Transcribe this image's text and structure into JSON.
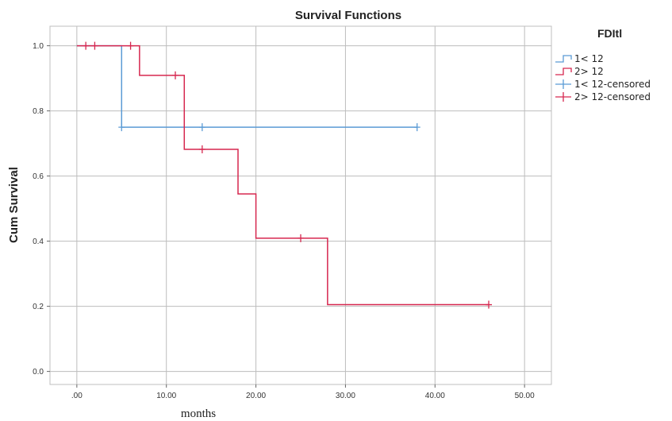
{
  "chart_data": {
    "type": "line",
    "subtype": "kaplan-meier-step",
    "title": "Survival Functions",
    "xlabel": "months",
    "ylabel": "Cum Survival",
    "xlim": [
      -3,
      53
    ],
    "ylim": [
      -0.04,
      1.06
    ],
    "x_ticks": [
      0,
      10,
      20,
      30,
      40,
      50
    ],
    "x_tick_labels": [
      ".00",
      "10.00",
      "20.00",
      "30.00",
      "40.00",
      "50.00"
    ],
    "y_ticks": [
      0,
      0.2,
      0.4,
      0.6,
      0.8,
      1.0
    ],
    "y_tick_labels": [
      "0.0",
      "0.2",
      "0.4",
      "0.6",
      "0.8",
      "1.0"
    ],
    "grid": true,
    "legend_title": "FDItl",
    "legend_position": "top-right outside",
    "series": [
      {
        "name": "1< 12",
        "color": "#5b9bd5",
        "steps": [
          [
            0,
            1.0
          ],
          [
            5,
            0.75
          ],
          [
            38,
            0.75
          ]
        ],
        "censored_name": "1< 12-censored",
        "censored": [
          [
            5,
            0.75
          ],
          [
            14,
            0.75
          ],
          [
            38,
            0.75
          ]
        ]
      },
      {
        "name": "2> 12",
        "color": "#d6274f",
        "steps": [
          [
            0,
            1.0
          ],
          [
            7,
            0.909
          ],
          [
            12,
            0.682
          ],
          [
            18,
            0.545
          ],
          [
            20,
            0.409
          ],
          [
            28,
            0.205
          ],
          [
            46,
            0.205
          ]
        ],
        "censored_name": "2> 12-censored",
        "censored": [
          [
            1,
            1.0
          ],
          [
            2,
            1.0
          ],
          [
            6,
            1.0
          ],
          [
            11,
            0.909
          ],
          [
            14,
            0.682
          ],
          [
            25,
            0.409
          ],
          [
            46,
            0.205
          ]
        ]
      }
    ]
  }
}
